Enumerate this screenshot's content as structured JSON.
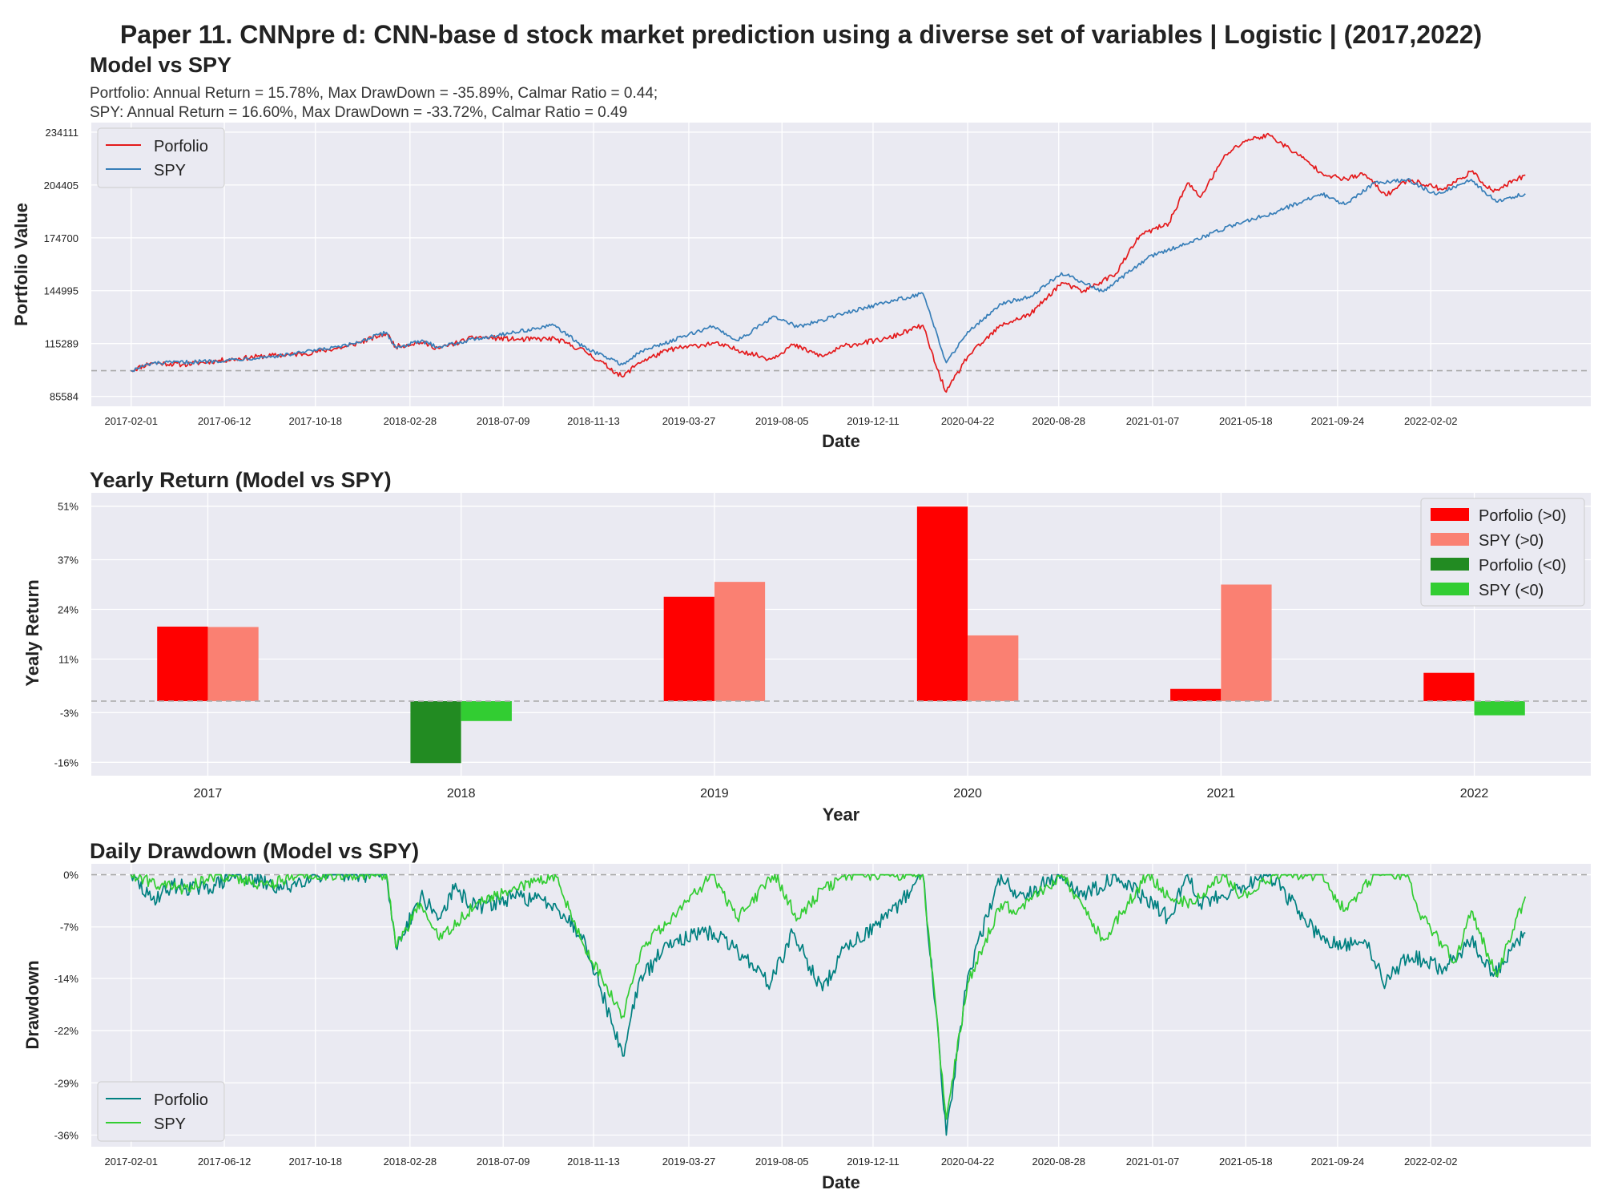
{
  "suptitle": "Paper 11. CNNpre d: CNN-base d stock market prediction using a diverse set of variables | Logistic | (2017,2022)",
  "colors": {
    "background": "#eaeaf2",
    "grid": "#ffffff",
    "portfolio_line": "#e41a1c",
    "spy_line": "#377eb8",
    "portfolio_pos": "#ff0000",
    "spy_pos": "#fa8072",
    "portfolio_neg": "#228b22",
    "spy_neg": "#32cd32",
    "dd_portfolio": "#008080",
    "dd_spy": "#32cd32",
    "baseline": "#aaaaaa"
  },
  "chart_data": [
    {
      "type": "line",
      "title": "Model vs SPY",
      "subtitle_lines": [
        "Portfolio: Annual Return = 15.78%, Max DrawDown = -35.89%, Calmar Ratio = 0.44;",
        "SPY: Annual Return = 16.60%, Max DrawDown = -33.72%, Calmar Ratio = 0.49"
      ],
      "xlabel": "Date",
      "ylabel": "Portfolio Value",
      "x_range": [
        "2016-12-07",
        "2022-09-15"
      ],
      "ylim": [
        80000,
        239500
      ],
      "y_ticks": [
        85584,
        115289,
        144995,
        174700,
        204405,
        234111
      ],
      "x_ticks": [
        "2017-02-01",
        "2017-06-12",
        "2017-10-18",
        "2018-02-28",
        "2018-07-09",
        "2018-11-13",
        "2019-03-27",
        "2019-08-05",
        "2019-12-11",
        "2020-04-22",
        "2020-08-28",
        "2021-01-07",
        "2021-05-18",
        "2021-09-24",
        "2022-02-02"
      ],
      "baseline": 100000,
      "grid": true,
      "legend_position": "upper-left",
      "series": [
        {
          "name": "Porfolio",
          "points": [
            [
              "2017-02-01",
              100000
            ],
            [
              "2017-03-01",
              104500
            ],
            [
              "2017-04-15",
              103500
            ],
            [
              "2017-06-01",
              105500
            ],
            [
              "2017-08-01",
              108000
            ],
            [
              "2017-10-01",
              109500
            ],
            [
              "2017-12-01",
              113500
            ],
            [
              "2018-01-26",
              121000
            ],
            [
              "2018-02-08",
              113500
            ],
            [
              "2018-03-15",
              116000
            ],
            [
              "2018-04-10",
              112500
            ],
            [
              "2018-06-01",
              119000
            ],
            [
              "2018-08-01",
              117500
            ],
            [
              "2018-09-20",
              118000
            ],
            [
              "2018-11-01",
              111000
            ],
            [
              "2018-12-24",
              96500
            ],
            [
              "2019-01-15",
              104500
            ],
            [
              "2019-03-01",
              112000
            ],
            [
              "2019-05-01",
              115500
            ],
            [
              "2019-06-10",
              111000
            ],
            [
              "2019-07-20",
              106500
            ],
            [
              "2019-08-20",
              114500
            ],
            [
              "2019-10-01",
              108000
            ],
            [
              "2019-11-01",
              114000
            ],
            [
              "2019-12-31",
              118000
            ],
            [
              "2020-02-19",
              125500
            ],
            [
              "2020-03-10",
              101000
            ],
            [
              "2020-03-23",
              88000
            ],
            [
              "2020-04-22",
              108000
            ],
            [
              "2020-06-08",
              125500
            ],
            [
              "2020-07-20",
              132000
            ],
            [
              "2020-09-01",
              149500
            ],
            [
              "2020-10-01",
              144500
            ],
            [
              "2020-11-16",
              154500
            ],
            [
              "2020-12-20",
              176000
            ],
            [
              "2021-01-30",
              183000
            ],
            [
              "2021-02-25",
              205500
            ],
            [
              "2021-03-15",
              197500
            ],
            [
              "2021-04-20",
              221500
            ],
            [
              "2021-05-18",
              229500
            ],
            [
              "2021-06-20",
              232500
            ],
            [
              "2021-08-01",
              221000
            ],
            [
              "2021-09-01",
              211500
            ],
            [
              "2021-10-01",
              207500
            ],
            [
              "2021-11-01",
              210500
            ],
            [
              "2021-12-01",
              198500
            ],
            [
              "2022-01-01",
              207500
            ],
            [
              "2022-02-20",
              202000
            ],
            [
              "2022-03-31",
              212000
            ],
            [
              "2022-05-01",
              200500
            ],
            [
              "2022-06-15",
              210000
            ]
          ]
        },
        {
          "name": "SPY",
          "points": [
            [
              "2017-02-01",
              100000
            ],
            [
              "2017-03-01",
              104000
            ],
            [
              "2017-06-01",
              105500
            ],
            [
              "2017-09-01",
              108500
            ],
            [
              "2017-12-01",
              114000
            ],
            [
              "2018-01-26",
              121500
            ],
            [
              "2018-02-08",
              113000
            ],
            [
              "2018-03-15",
              116500
            ],
            [
              "2018-04-10",
              113500
            ],
            [
              "2018-06-01",
              118000
            ],
            [
              "2018-09-20",
              125500
            ],
            [
              "2018-10-29",
              113500
            ],
            [
              "2018-12-24",
              103500
            ],
            [
              "2019-01-20",
              111000
            ],
            [
              "2019-04-30",
              125000
            ],
            [
              "2019-06-03",
              117000
            ],
            [
              "2019-07-26",
              130500
            ],
            [
              "2019-08-27",
              124500
            ],
            [
              "2019-10-01",
              128500
            ],
            [
              "2019-11-15",
              134000
            ],
            [
              "2019-12-31",
              138500
            ],
            [
              "2020-02-19",
              143500
            ],
            [
              "2020-03-23",
              104500
            ],
            [
              "2020-04-22",
              122000
            ],
            [
              "2020-06-08",
              137500
            ],
            [
              "2020-07-20",
              142000
            ],
            [
              "2020-09-01",
              155000
            ],
            [
              "2020-10-30",
              144500
            ],
            [
              "2020-12-31",
              163500
            ],
            [
              "2021-03-01",
              172500
            ],
            [
              "2021-05-01",
              182000
            ],
            [
              "2021-07-01",
              189500
            ],
            [
              "2021-09-01",
              199500
            ],
            [
              "2021-10-04",
              193500
            ],
            [
              "2021-11-15",
              205500
            ],
            [
              "2021-12-31",
              207500
            ],
            [
              "2022-02-10",
              199000
            ],
            [
              "2022-03-31",
              207500
            ],
            [
              "2022-05-05",
              195000
            ],
            [
              "2022-06-15",
              199500
            ]
          ]
        }
      ]
    },
    {
      "type": "bar",
      "title": "Yearly Return (Model vs SPY)",
      "xlabel": "Year",
      "ylabel": "Yealy Return",
      "categories": [
        "2017",
        "2018",
        "2019",
        "2020",
        "2021",
        "2022"
      ],
      "ylim": [
        -19.5,
        54.5
      ],
      "y_tick_labels": [
        "-16%",
        "-3%",
        "11%",
        "24%",
        "37%",
        "51%"
      ],
      "y_tick_values": [
        -16,
        -3,
        11,
        24,
        37,
        51
      ],
      "grid": true,
      "legend_position": "upper-right",
      "legend": [
        "Porfolio (>0)",
        "SPY (>0)",
        "Porfolio (<0)",
        "SPY (<0)"
      ],
      "series": [
        {
          "name": "Porfolio",
          "values": [
            19.5,
            -16.2,
            27.3,
            50.9,
            3.2,
            7.4
          ]
        },
        {
          "name": "SPY",
          "values": [
            19.4,
            -5.2,
            31.2,
            17.2,
            30.5,
            -3.7
          ]
        }
      ]
    },
    {
      "type": "line",
      "title": "Daily Drawdown (Model vs SPY)",
      "xlabel": "Date",
      "ylabel": "Drawdown",
      "x_range": [
        "2016-12-07",
        "2022-09-15"
      ],
      "ylim": [
        -37.5,
        1.5
      ],
      "y_tick_labels": [
        "0%",
        "-7%",
        "-14%",
        "-22%",
        "-29%",
        "-36%"
      ],
      "y_tick_values": [
        0,
        -7.2,
        -14.3,
        -21.5,
        -28.7,
        -35.9
      ],
      "x_ticks": [
        "2017-02-01",
        "2017-06-12",
        "2017-10-18",
        "2018-02-28",
        "2018-07-09",
        "2018-11-13",
        "2019-03-27",
        "2019-08-05",
        "2019-12-11",
        "2020-04-22",
        "2020-08-28",
        "2021-01-07",
        "2021-05-18",
        "2021-09-24",
        "2022-02-02"
      ],
      "baseline": 0,
      "grid": true,
      "legend_position": "lower-left",
      "series": [
        {
          "name": "Porfolio",
          "points": [
            [
              "2017-02-01",
              0
            ],
            [
              "2017-03-01",
              -3.5
            ],
            [
              "2017-04-01",
              -1.5
            ],
            [
              "2017-05-15",
              -2
            ],
            [
              "2017-07-01",
              0
            ],
            [
              "2017-09-01",
              -2
            ],
            [
              "2017-10-15",
              0
            ],
            [
              "2018-01-26",
              0
            ],
            [
              "2018-02-08",
              -10
            ],
            [
              "2018-03-15",
              -3
            ],
            [
              "2018-04-10",
              -6
            ],
            [
              "2018-05-01",
              -2
            ],
            [
              "2018-06-01",
              -4.5
            ],
            [
              "2018-08-01",
              -3
            ],
            [
              "2018-09-20",
              -4
            ],
            [
              "2018-11-01",
              -9
            ],
            [
              "2018-12-24",
              -25
            ],
            [
              "2019-01-15",
              -15
            ],
            [
              "2019-03-01",
              -9
            ],
            [
              "2019-05-01",
              -8
            ],
            [
              "2019-06-10",
              -11
            ],
            [
              "2019-07-20",
              -15
            ],
            [
              "2019-08-20",
              -8
            ],
            [
              "2019-10-01",
              -16
            ],
            [
              "2019-11-01",
              -10
            ],
            [
              "2019-12-31",
              -6
            ],
            [
              "2020-02-19",
              0
            ],
            [
              "2020-03-10",
              -20
            ],
            [
              "2020-03-23",
              -35.9
            ],
            [
              "2020-04-22",
              -14
            ],
            [
              "2020-06-08",
              0
            ],
            [
              "2020-07-01",
              -3
            ],
            [
              "2020-09-01",
              0
            ],
            [
              "2020-10-01",
              -3
            ],
            [
              "2020-11-16",
              0
            ],
            [
              "2021-01-30",
              -6
            ],
            [
              "2021-02-25",
              0
            ],
            [
              "2021-03-15",
              -4
            ],
            [
              "2021-06-20",
              0
            ],
            [
              "2021-08-01",
              -5
            ],
            [
              "2021-09-01",
              -9
            ],
            [
              "2021-10-01",
              -10
            ],
            [
              "2021-11-01",
              -9
            ],
            [
              "2021-12-01",
              -15
            ],
            [
              "2022-01-01",
              -11
            ],
            [
              "2022-02-20",
              -13
            ],
            [
              "2022-03-31",
              -9
            ],
            [
              "2022-05-01",
              -14
            ],
            [
              "2022-06-15",
              -8
            ]
          ]
        },
        {
          "name": "SPY",
          "points": [
            [
              "2017-02-01",
              0
            ],
            [
              "2017-03-01",
              -1
            ],
            [
              "2017-04-15",
              -2
            ],
            [
              "2017-06-01",
              0
            ],
            [
              "2017-08-15",
              -1.5
            ],
            [
              "2017-09-15",
              0
            ],
            [
              "2018-01-26",
              0
            ],
            [
              "2018-02-08",
              -10
            ],
            [
              "2018-03-15",
              -4
            ],
            [
              "2018-04-10",
              -9
            ],
            [
              "2018-06-01",
              -4
            ],
            [
              "2018-09-20",
              0
            ],
            [
              "2018-10-29",
              -9.5
            ],
            [
              "2018-12-24",
              -19.5
            ],
            [
              "2019-01-20",
              -10
            ],
            [
              "2019-04-30",
              0
            ],
            [
              "2019-06-03",
              -6
            ],
            [
              "2019-07-26",
              0
            ],
            [
              "2019-08-27",
              -6
            ],
            [
              "2019-10-01",
              -2
            ],
            [
              "2019-11-15",
              0
            ],
            [
              "2020-02-19",
              0
            ],
            [
              "2020-03-23",
              -33.7
            ],
            [
              "2020-04-22",
              -15
            ],
            [
              "2020-06-08",
              -4
            ],
            [
              "2020-07-01",
              -5
            ],
            [
              "2020-09-01",
              0
            ],
            [
              "2020-10-30",
              -9
            ],
            [
              "2020-12-31",
              0
            ],
            [
              "2021-01-29",
              -3
            ],
            [
              "2021-03-04",
              -4
            ],
            [
              "2021-04-15",
              0
            ],
            [
              "2021-05-12",
              -3
            ],
            [
              "2021-07-01",
              0
            ],
            [
              "2021-09-01",
              0
            ],
            [
              "2021-10-04",
              -5
            ],
            [
              "2021-11-15",
              0
            ],
            [
              "2021-12-31",
              0
            ],
            [
              "2022-01-15",
              -5
            ],
            [
              "2022-03-08",
              -12
            ],
            [
              "2022-03-31",
              -5
            ],
            [
              "2022-05-05",
              -14
            ],
            [
              "2022-06-15",
              -3
            ]
          ]
        }
      ]
    }
  ]
}
